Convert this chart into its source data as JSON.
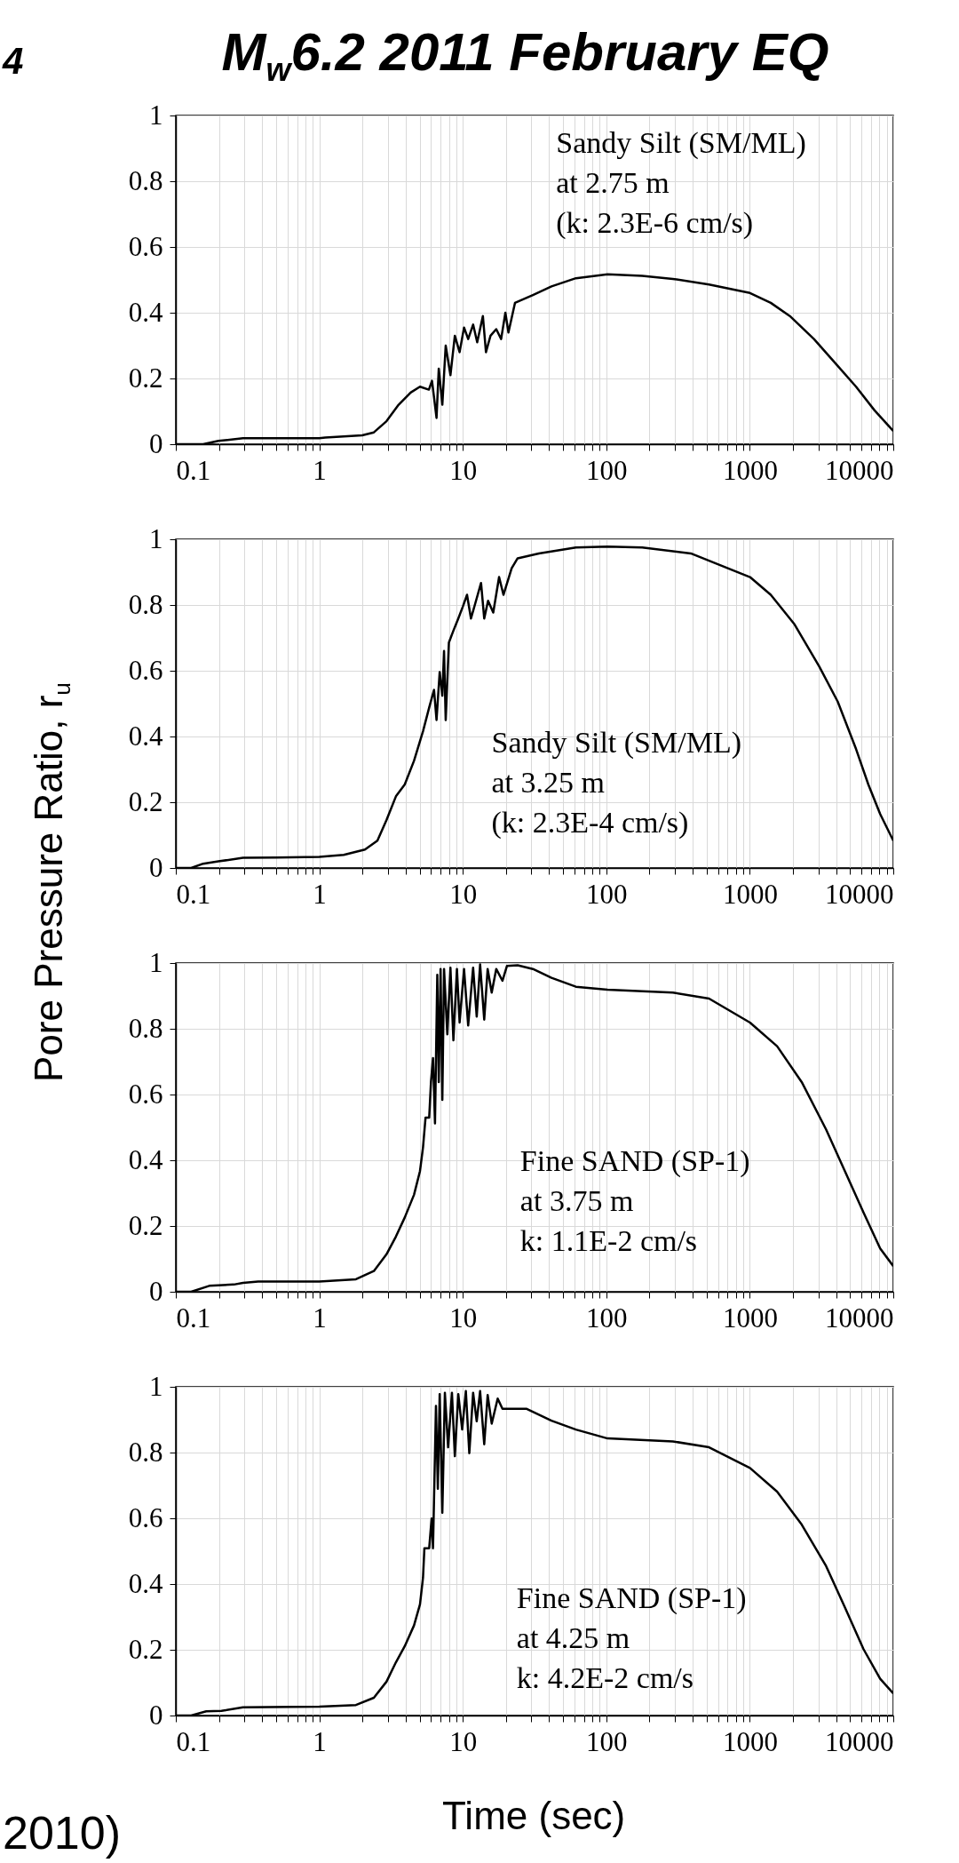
{
  "chart_data": [
    {
      "type": "line",
      "title": "M$_{w}$6.2  2011 February EQ",
      "log": "x",
      "grid": true,
      "line_style": "solid",
      "annotations": [
        "Sandy Silt (SM/ML)\nat 2.75 m\n(k: 2.3E-6 cm/s)",
        "4"
      ],
      "xlim": [
        0.1,
        10000
      ],
      "ylim": [
        0,
        1
      ],
      "yticks": [
        0,
        0.2,
        0.4,
        0.6,
        0.8,
        1
      ],
      "xticks": [
        0.1,
        {
          "value": 0.2,
          "label": null
        },
        {
          "value": 0.3,
          "label": null
        },
        {
          "value": 0.4,
          "label": null
        },
        {
          "value": 0.5,
          "label": null
        },
        {
          "value": 0.6,
          "label": null
        },
        {
          "value": 0.7,
          "label": null
        },
        {
          "value": 0.8,
          "label": null
        },
        {
          "value": 0.9,
          "label": null
        },
        1,
        {
          "value": 2,
          "label": null
        },
        {
          "value": 3,
          "label": null
        },
        {
          "value": 4,
          "label": null
        },
        {
          "value": 5,
          "label": null
        },
        {
          "value": 6,
          "label": null
        },
        {
          "value": 7,
          "label": null
        },
        {
          "value": 8,
          "label": null
        },
        {
          "value": 9,
          "label": null
        },
        10,
        {
          "value": 20,
          "label": null
        },
        {
          "value": 30,
          "label": null
        },
        {
          "value": 40,
          "label": null
        },
        {
          "value": 50,
          "label": null
        },
        {
          "value": 60,
          "label": null
        },
        {
          "value": 70,
          "label": null
        },
        {
          "value": 80,
          "label": null
        },
        {
          "value": 90,
          "label": null
        },
        100,
        {
          "value": 200,
          "label": null
        },
        {
          "value": 300,
          "label": null
        },
        {
          "value": 400,
          "label": null
        },
        {
          "value": 500,
          "label": null
        },
        {
          "value": 600,
          "label": null
        },
        {
          "value": 700,
          "label": null
        },
        {
          "value": 800,
          "label": null
        },
        {
          "value": 900,
          "label": null
        },
        1000,
        {
          "value": 2000,
          "label": null
        },
        {
          "value": 3000,
          "label": null
        },
        {
          "value": 4000,
          "label": null
        },
        {
          "value": 5000,
          "label": null
        },
        {
          "value": 6000,
          "label": null
        },
        {
          "value": 7000,
          "label": null
        },
        {
          "value": 8000,
          "label": null
        },
        {
          "value": 9000,
          "label": null
        },
        10000
      ],
      "x": [
        0.1,
        0.155,
        0.198,
        0.294,
        1.0,
        1.1,
        1.99,
        2.4,
        2.94,
        3.57,
        4.33,
        5.03,
        5.8,
        6.1,
        6.56,
        6.8,
        7.2,
        7.6,
        8.2,
        8.8,
        9.5,
        10.2,
        10.9,
        11.8,
        12.6,
        13.8,
        14.5,
        15.6,
        17.1,
        18.5,
        19.8,
        20.8,
        23.1,
        30.8,
        41.5,
        61.4,
        102,
        178,
        291,
        520,
        1003,
        1400,
        1900,
        2800,
        4100,
        5500,
        7400,
        10000
      ],
      "series": [
        {
          "color": "#000000",
          "values": [
            0,
            0,
            0.01,
            0.018,
            0.018,
            0.02,
            0.027,
            0.036,
            0.07,
            0.12,
            0.157,
            0.175,
            0.166,
            0.193,
            0.08,
            0.23,
            0.12,
            0.3,
            0.21,
            0.33,
            0.28,
            0.355,
            0.32,
            0.364,
            0.31,
            0.39,
            0.28,
            0.33,
            0.35,
            0.32,
            0.4,
            0.34,
            0.43,
            0.454,
            0.48,
            0.505,
            0.517,
            0.512,
            0.503,
            0.486,
            0.46,
            0.43,
            0.39,
            0.32,
            0.238,
            0.175,
            0.103,
            0.04
          ]
        }
      ]
    },
    {
      "type": "line",
      "ylabel": "Pore Pressure Ratio, r$_{u}$",
      "log": "x",
      "grid": true,
      "line_style": "solid",
      "annotations": [
        "Sandy Silt (SM/ML)\nat 3.25 m\n(k: 2.3E-4 cm/s)"
      ],
      "xlim": [
        0.1,
        10000
      ],
      "ylim": [
        0,
        1
      ],
      "yticks": [
        0,
        0.2,
        0.4,
        0.6,
        0.8,
        1
      ],
      "xticks": [
        0.1,
        {
          "value": 0.2,
          "label": null
        },
        {
          "value": 0.3,
          "label": null
        },
        {
          "value": 0.4,
          "label": null
        },
        {
          "value": 0.5,
          "label": null
        },
        {
          "value": 0.6,
          "label": null
        },
        {
          "value": 0.7,
          "label": null
        },
        {
          "value": 0.8,
          "label": null
        },
        {
          "value": 0.9,
          "label": null
        },
        1,
        {
          "value": 2,
          "label": null
        },
        {
          "value": 3,
          "label": null
        },
        {
          "value": 4,
          "label": null
        },
        {
          "value": 5,
          "label": null
        },
        {
          "value": 6,
          "label": null
        },
        {
          "value": 7,
          "label": null
        },
        {
          "value": 8,
          "label": null
        },
        {
          "value": 9,
          "label": null
        },
        10,
        {
          "value": 20,
          "label": null
        },
        {
          "value": 30,
          "label": null
        },
        {
          "value": 40,
          "label": null
        },
        {
          "value": 50,
          "label": null
        },
        {
          "value": 60,
          "label": null
        },
        {
          "value": 70,
          "label": null
        },
        {
          "value": 80,
          "label": null
        },
        {
          "value": 90,
          "label": null
        },
        100,
        {
          "value": 200,
          "label": null
        },
        {
          "value": 300,
          "label": null
        },
        {
          "value": 400,
          "label": null
        },
        {
          "value": 500,
          "label": null
        },
        {
          "value": 600,
          "label": null
        },
        {
          "value": 700,
          "label": null
        },
        {
          "value": 800,
          "label": null
        },
        {
          "value": 900,
          "label": null
        },
        1000,
        {
          "value": 2000,
          "label": null
        },
        {
          "value": 3000,
          "label": null
        },
        {
          "value": 4000,
          "label": null
        },
        {
          "value": 5000,
          "label": null
        },
        {
          "value": 6000,
          "label": null
        },
        {
          "value": 7000,
          "label": null
        },
        {
          "value": 8000,
          "label": null
        },
        {
          "value": 9000,
          "label": null
        },
        10000
      ],
      "x": [
        0.1,
        0.128,
        0.155,
        0.198,
        0.294,
        0.5,
        1.0,
        1.48,
        2.08,
        2.54,
        2.94,
        3.42,
        3.94,
        4.57,
        5.28,
        5.83,
        6.3,
        6.56,
        6.9,
        7.2,
        7.4,
        7.6,
        8.0,
        8.6,
        9.3,
        10.0,
        10.7,
        11.4,
        12.2,
        13.4,
        14.1,
        15.0,
        16.3,
        17.9,
        19.2,
        21.9,
        24.1,
        33.9,
        61.4,
        102,
        178,
        388,
        1003,
        1400,
        2050,
        3040,
        4100,
        5500,
        6700,
        8100,
        10000
      ],
      "series": [
        {
          "color": "#000000",
          "values": [
            0,
            0,
            0.013,
            0.02,
            0.031,
            0.032,
            0.034,
            0.04,
            0.056,
            0.083,
            0.146,
            0.218,
            0.254,
            0.326,
            0.416,
            0.488,
            0.542,
            0.45,
            0.596,
            0.524,
            0.66,
            0.45,
            0.686,
            0.722,
            0.759,
            0.795,
            0.831,
            0.759,
            0.804,
            0.867,
            0.759,
            0.813,
            0.777,
            0.885,
            0.831,
            0.912,
            0.942,
            0.957,
            0.975,
            0.978,
            0.975,
            0.957,
            0.885,
            0.831,
            0.741,
            0.614,
            0.506,
            0.362,
            0.254,
            0.164,
            0.083
          ]
        }
      ]
    },
    {
      "type": "line",
      "log": "x",
      "grid": true,
      "line_style": "solid",
      "annotations": [
        "Fine SAND (SP-1)\nat 3.75 m\nk: 1.1E-2 cm/s"
      ],
      "xlim": [
        0.1,
        10000
      ],
      "ylim": [
        0,
        1
      ],
      "yticks": [
        0,
        0.2,
        0.4,
        0.6,
        0.8,
        1
      ],
      "xticks": [
        0.1,
        {
          "value": 0.2,
          "label": null
        },
        {
          "value": 0.3,
          "label": null
        },
        {
          "value": 0.4,
          "label": null
        },
        {
          "value": 0.5,
          "label": null
        },
        {
          "value": 0.6,
          "label": null
        },
        {
          "value": 0.7,
          "label": null
        },
        {
          "value": 0.8,
          "label": null
        },
        {
          "value": 0.9,
          "label": null
        },
        1,
        {
          "value": 2,
          "label": null
        },
        {
          "value": 3,
          "label": null
        },
        {
          "value": 4,
          "label": null
        },
        {
          "value": 5,
          "label": null
        },
        {
          "value": 6,
          "label": null
        },
        {
          "value": 7,
          "label": null
        },
        {
          "value": 8,
          "label": null
        },
        {
          "value": 9,
          "label": null
        },
        10,
        {
          "value": 20,
          "label": null
        },
        {
          "value": 30,
          "label": null
        },
        {
          "value": 40,
          "label": null
        },
        {
          "value": 50,
          "label": null
        },
        {
          "value": 60,
          "label": null
        },
        {
          "value": 70,
          "label": null
        },
        {
          "value": 80,
          "label": null
        },
        {
          "value": 90,
          "label": null
        },
        100,
        {
          "value": 200,
          "label": null
        },
        {
          "value": 300,
          "label": null
        },
        {
          "value": 400,
          "label": null
        },
        {
          "value": 500,
          "label": null
        },
        {
          "value": 600,
          "label": null
        },
        {
          "value": 700,
          "label": null
        },
        {
          "value": 800,
          "label": null
        },
        {
          "value": 900,
          "label": null
        },
        1000,
        {
          "value": 2000,
          "label": null
        },
        {
          "value": 3000,
          "label": null
        },
        {
          "value": 4000,
          "label": null
        },
        {
          "value": 5000,
          "label": null
        },
        {
          "value": 6000,
          "label": null
        },
        {
          "value": 7000,
          "label": null
        },
        {
          "value": 8000,
          "label": null
        },
        {
          "value": 9000,
          "label": null
        },
        10000
      ],
      "x": [
        0.1,
        0.128,
        0.171,
        0.254,
        0.294,
        0.375,
        1.0,
        1.8,
        2.4,
        2.94,
        3.42,
        3.94,
        4.57,
        5.03,
        5.28,
        5.5,
        5.83,
        6.0,
        6.2,
        6.4,
        6.64,
        6.8,
        7.0,
        7.2,
        7.4,
        7.8,
        8.2,
        8.6,
        9.1,
        9.5,
        10.2,
        10.9,
        11.8,
        12.5,
        13.2,
        14.1,
        14.9,
        15.9,
        17.1,
        18.9,
        20.3,
        24.1,
        30.8,
        41.5,
        61.4,
        102,
        291,
        520,
        1003,
        1550,
        2300,
        3400,
        4600,
        6200,
        8100,
        10000
      ],
      "series": [
        {
          "color": "#000000",
          "values": [
            0,
            0,
            0.018,
            0.022,
            0.027,
            0.031,
            0.031,
            0.038,
            0.063,
            0.114,
            0.168,
            0.226,
            0.295,
            0.367,
            0.439,
            0.53,
            0.53,
            0.638,
            0.711,
            0.512,
            0.964,
            0.638,
            0.982,
            0.584,
            0.982,
            0.783,
            0.986,
            0.765,
            0.982,
            0.819,
            0.982,
            0.81,
            0.986,
            0.837,
            0.996,
            0.828,
            0.982,
            0.91,
            0.982,
            0.946,
            0.991,
            0.993,
            0.982,
            0.955,
            0.928,
            0.919,
            0.91,
            0.892,
            0.819,
            0.747,
            0.638,
            0.494,
            0.367,
            0.241,
            0.132,
            0.078
          ]
        }
      ]
    },
    {
      "type": "line",
      "xlabel": "Time (sec)",
      "log": "x",
      "grid": true,
      "line_style": "solid",
      "annotations": [
        "Fine SAND (SP-1)\nat 4.25 m\nk: 4.2E-2 cm/s",
        "2010)"
      ],
      "xlim": [
        0.1,
        10000
      ],
      "ylim": [
        0,
        1
      ],
      "yticks": [
        0,
        0.2,
        0.4,
        0.6,
        0.8,
        1
      ],
      "xticks": [
        0.1,
        {
          "value": 0.2,
          "label": null
        },
        {
          "value": 0.3,
          "label": null
        },
        {
          "value": 0.4,
          "label": null
        },
        {
          "value": 0.5,
          "label": null
        },
        {
          "value": 0.6,
          "label": null
        },
        {
          "value": 0.7,
          "label": null
        },
        {
          "value": 0.8,
          "label": null
        },
        {
          "value": 0.9,
          "label": null
        },
        1,
        {
          "value": 2,
          "label": null
        },
        {
          "value": 3,
          "label": null
        },
        {
          "value": 4,
          "label": null
        },
        {
          "value": 5,
          "label": null
        },
        {
          "value": 6,
          "label": null
        },
        {
          "value": 7,
          "label": null
        },
        {
          "value": 8,
          "label": null
        },
        {
          "value": 9,
          "label": null
        },
        10,
        {
          "value": 20,
          "label": null
        },
        {
          "value": 30,
          "label": null
        },
        {
          "value": 40,
          "label": null
        },
        {
          "value": 50,
          "label": null
        },
        {
          "value": 60,
          "label": null
        },
        {
          "value": 70,
          "label": null
        },
        {
          "value": 80,
          "label": null
        },
        {
          "value": 90,
          "label": null
        },
        100,
        {
          "value": 200,
          "label": null
        },
        {
          "value": 300,
          "label": null
        },
        {
          "value": 400,
          "label": null
        },
        {
          "value": 500,
          "label": null
        },
        {
          "value": 600,
          "label": null
        },
        {
          "value": 700,
          "label": null
        },
        {
          "value": 800,
          "label": null
        },
        {
          "value": 900,
          "label": null
        },
        1000,
        {
          "value": 2000,
          "label": null
        },
        {
          "value": 3000,
          "label": null
        },
        {
          "value": 4000,
          "label": null
        },
        {
          "value": 5000,
          "label": null
        },
        {
          "value": 6000,
          "label": null
        },
        {
          "value": 7000,
          "label": null
        },
        {
          "value": 8000,
          "label": null
        },
        {
          "value": 9000,
          "label": null
        },
        10000
      ],
      "x": [
        0.1,
        0.128,
        0.163,
        0.208,
        0.294,
        1.0,
        1.8,
        2.4,
        2.94,
        3.42,
        3.94,
        4.57,
        5.03,
        5.28,
        5.4,
        5.83,
        6.06,
        6.2,
        6.5,
        6.7,
        6.9,
        7.2,
        7.5,
        7.9,
        8.4,
        8.8,
        9.3,
        9.9,
        10.5,
        11.1,
        11.8,
        12.5,
        13.2,
        14.1,
        14.9,
        15.9,
        17.5,
        18.9,
        20.8,
        27.9,
        41.5,
        61.4,
        102,
        291,
        520,
        1003,
        1550,
        2300,
        3400,
        4600,
        6200,
        8100,
        10000
      ],
      "series": [
        {
          "color": "#000000",
          "values": [
            0,
            0,
            0.013,
            0.014,
            0.025,
            0.027,
            0.032,
            0.054,
            0.103,
            0.162,
            0.211,
            0.274,
            0.338,
            0.419,
            0.509,
            0.509,
            0.599,
            0.509,
            0.942,
            0.69,
            0.978,
            0.617,
            0.982,
            0.816,
            0.982,
            0.789,
            0.978,
            0.87,
            0.987,
            0.798,
            0.982,
            0.895,
            0.987,
            0.825,
            0.975,
            0.888,
            0.964,
            0.933,
            0.933,
            0.933,
            0.897,
            0.87,
            0.843,
            0.834,
            0.816,
            0.753,
            0.681,
            0.581,
            0.455,
            0.329,
            0.202,
            0.112,
            0.067
          ]
        }
      ]
    }
  ]
}
